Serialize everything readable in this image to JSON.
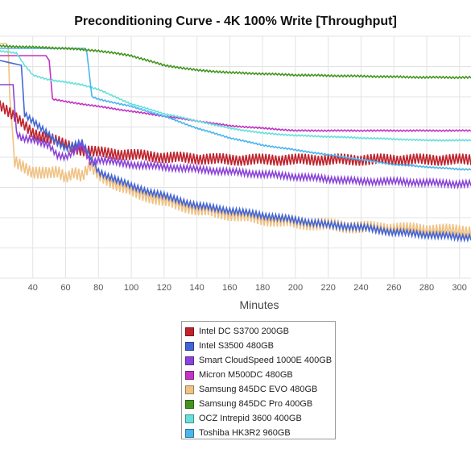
{
  "chart_data": {
    "type": "line",
    "title": "Preconditioning Curve - 4K 100% Write [Throughput]",
    "xlabel": "Minutes",
    "ylabel": "",
    "xlim": [
      20,
      307
    ],
    "ylim": [
      0,
      100
    ],
    "x_ticks": [
      40,
      60,
      80,
      100,
      120,
      140,
      160,
      180,
      200,
      220,
      240,
      260,
      280,
      300
    ],
    "grid": true,
    "legend_position": "bottom-center",
    "series": [
      {
        "name": "Intel DC S3700 200GB",
        "color": "#c0232c",
        "points": [
          [
            20,
            72
          ],
          [
            30,
            66
          ],
          [
            40,
            60
          ],
          [
            50,
            58
          ],
          [
            60,
            55
          ],
          [
            70,
            53
          ],
          [
            80,
            52
          ],
          [
            100,
            51
          ],
          [
            120,
            50
          ],
          [
            140,
            49.5
          ],
          [
            160,
            49
          ],
          [
            200,
            49
          ],
          [
            250,
            49
          ],
          [
            307,
            49
          ]
        ],
        "noise": 2.5,
        "noise_start": 20
      },
      {
        "name": "Intel S3500 480GB",
        "color": "#4366d6",
        "points": [
          [
            20,
            90
          ],
          [
            33,
            88
          ],
          [
            35,
            68
          ],
          [
            40,
            65
          ],
          [
            50,
            59
          ],
          [
            55,
            56
          ],
          [
            60,
            54
          ],
          [
            65,
            55
          ],
          [
            70,
            56
          ],
          [
            80,
            44
          ],
          [
            90,
            41
          ],
          [
            100,
            38
          ],
          [
            120,
            34
          ],
          [
            140,
            30
          ],
          [
            160,
            28
          ],
          [
            180,
            26
          ],
          [
            200,
            24
          ],
          [
            220,
            22
          ],
          [
            240,
            21
          ],
          [
            260,
            19
          ],
          [
            280,
            18
          ],
          [
            300,
            17
          ],
          [
            307,
            17
          ]
        ],
        "noise": 1.4,
        "noise_start": 35
      },
      {
        "name": "Smart CloudSpeed 1000E 400GB",
        "color": "#8a44d8",
        "points": [
          [
            20,
            80
          ],
          [
            28,
            80
          ],
          [
            30,
            60
          ],
          [
            33,
            58
          ],
          [
            40,
            57
          ],
          [
            50,
            55
          ],
          [
            55,
            51
          ],
          [
            60,
            50
          ],
          [
            65,
            52
          ],
          [
            70,
            55
          ],
          [
            75,
            48
          ],
          [
            80,
            49
          ],
          [
            90,
            48
          ],
          [
            100,
            47
          ],
          [
            120,
            46
          ],
          [
            140,
            45
          ],
          [
            160,
            44
          ],
          [
            180,
            43
          ],
          [
            200,
            42
          ],
          [
            220,
            41
          ],
          [
            240,
            40
          ],
          [
            260,
            40
          ],
          [
            280,
            39.5
          ],
          [
            300,
            39
          ],
          [
            307,
            39
          ]
        ],
        "noise": 1.4,
        "noise_start": 30
      },
      {
        "name": "Micron M500DC 480GB",
        "color": "#c235c4",
        "points": [
          [
            20,
            92
          ],
          [
            48,
            92
          ],
          [
            50,
            90
          ],
          [
            52,
            74
          ],
          [
            60,
            73
          ],
          [
            70,
            72
          ],
          [
            80,
            71
          ],
          [
            100,
            69
          ],
          [
            120,
            67
          ],
          [
            140,
            65
          ],
          [
            160,
            63
          ],
          [
            180,
            62
          ],
          [
            200,
            61
          ],
          [
            240,
            61
          ],
          [
            280,
            61
          ],
          [
            307,
            61
          ]
        ],
        "noise": 0.3,
        "noise_start": 52
      },
      {
        "name": "Samsung 845DC EVO 480GB",
        "color": "#f0c284",
        "points": [
          [
            20,
            97
          ],
          [
            24,
            97
          ],
          [
            25,
            95
          ],
          [
            26,
            75
          ],
          [
            29,
            48
          ],
          [
            35,
            46
          ],
          [
            40,
            44
          ],
          [
            50,
            43
          ],
          [
            55,
            44
          ],
          [
            60,
            42
          ],
          [
            65,
            44
          ],
          [
            70,
            42
          ],
          [
            75,
            46
          ],
          [
            80,
            43
          ],
          [
            90,
            39
          ],
          [
            100,
            36
          ],
          [
            120,
            32
          ],
          [
            140,
            28.5
          ],
          [
            160,
            26.5
          ],
          [
            180,
            24.5
          ],
          [
            200,
            23
          ],
          [
            220,
            22
          ],
          [
            240,
            21
          ],
          [
            260,
            20.5
          ],
          [
            280,
            20
          ],
          [
            300,
            19.5
          ],
          [
            307,
            19.5
          ]
        ],
        "noise": 2.8,
        "noise_start": 29
      },
      {
        "name": "Samsung 845DC Pro 400GB",
        "color": "#44951f",
        "points": [
          [
            20,
            96
          ],
          [
            60,
            95
          ],
          [
            80,
            94
          ],
          [
            100,
            92
          ],
          [
            110,
            90
          ],
          [
            120,
            88
          ],
          [
            140,
            86
          ],
          [
            160,
            85
          ],
          [
            180,
            84.5
          ],
          [
            200,
            84
          ],
          [
            240,
            83.5
          ],
          [
            280,
            83
          ],
          [
            307,
            83
          ]
        ],
        "noise": 0.4,
        "noise_start": 20
      },
      {
        "name": "OCZ Intrepid 3600 400GB",
        "color": "#66e0da",
        "points": [
          [
            20,
            94
          ],
          [
            30,
            93
          ],
          [
            35,
            88
          ],
          [
            40,
            84
          ],
          [
            50,
            82
          ],
          [
            60,
            81
          ],
          [
            70,
            80
          ],
          [
            80,
            78
          ],
          [
            100,
            72
          ],
          [
            120,
            68
          ],
          [
            140,
            65
          ],
          [
            160,
            62
          ],
          [
            180,
            60
          ],
          [
            200,
            59
          ],
          [
            220,
            58.5
          ],
          [
            240,
            58
          ],
          [
            260,
            57.5
          ],
          [
            280,
            57
          ],
          [
            307,
            57
          ]
        ],
        "noise": 0.3,
        "noise_start": 20
      },
      {
        "name": "Toshiba HK3R2 960GB",
        "color": "#4ab6ef",
        "points": [
          [
            20,
            95
          ],
          [
            72,
            95
          ],
          [
            73,
            93
          ],
          [
            76,
            75
          ],
          [
            80,
            74
          ],
          [
            100,
            71
          ],
          [
            120,
            67
          ],
          [
            140,
            62
          ],
          [
            160,
            58
          ],
          [
            180,
            55
          ],
          [
            200,
            53
          ],
          [
            220,
            51
          ],
          [
            240,
            49
          ],
          [
            260,
            47
          ],
          [
            280,
            46
          ],
          [
            300,
            45
          ],
          [
            307,
            45
          ]
        ],
        "noise": 0.3,
        "noise_start": 76
      }
    ]
  }
}
